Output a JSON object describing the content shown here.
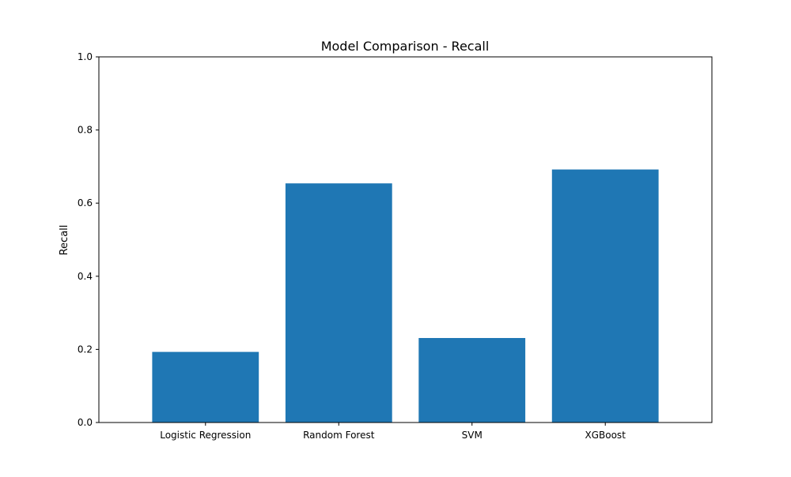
{
  "chart_data": {
    "type": "bar",
    "title": "Model Comparison - Recall",
    "xlabel": "",
    "ylabel": "Recall",
    "categories": [
      "Logistic Regression",
      "Random Forest",
      "SVM",
      "XGBoost"
    ],
    "values": [
      0.193,
      0.654,
      0.231,
      0.692
    ],
    "ylim": [
      0,
      1.0
    ],
    "yticks": [
      "0.0",
      "0.2",
      "0.4",
      "0.6",
      "0.8",
      "1.0"
    ],
    "bar_color": "#1f77b4",
    "grid": false,
    "legend": "none"
  }
}
